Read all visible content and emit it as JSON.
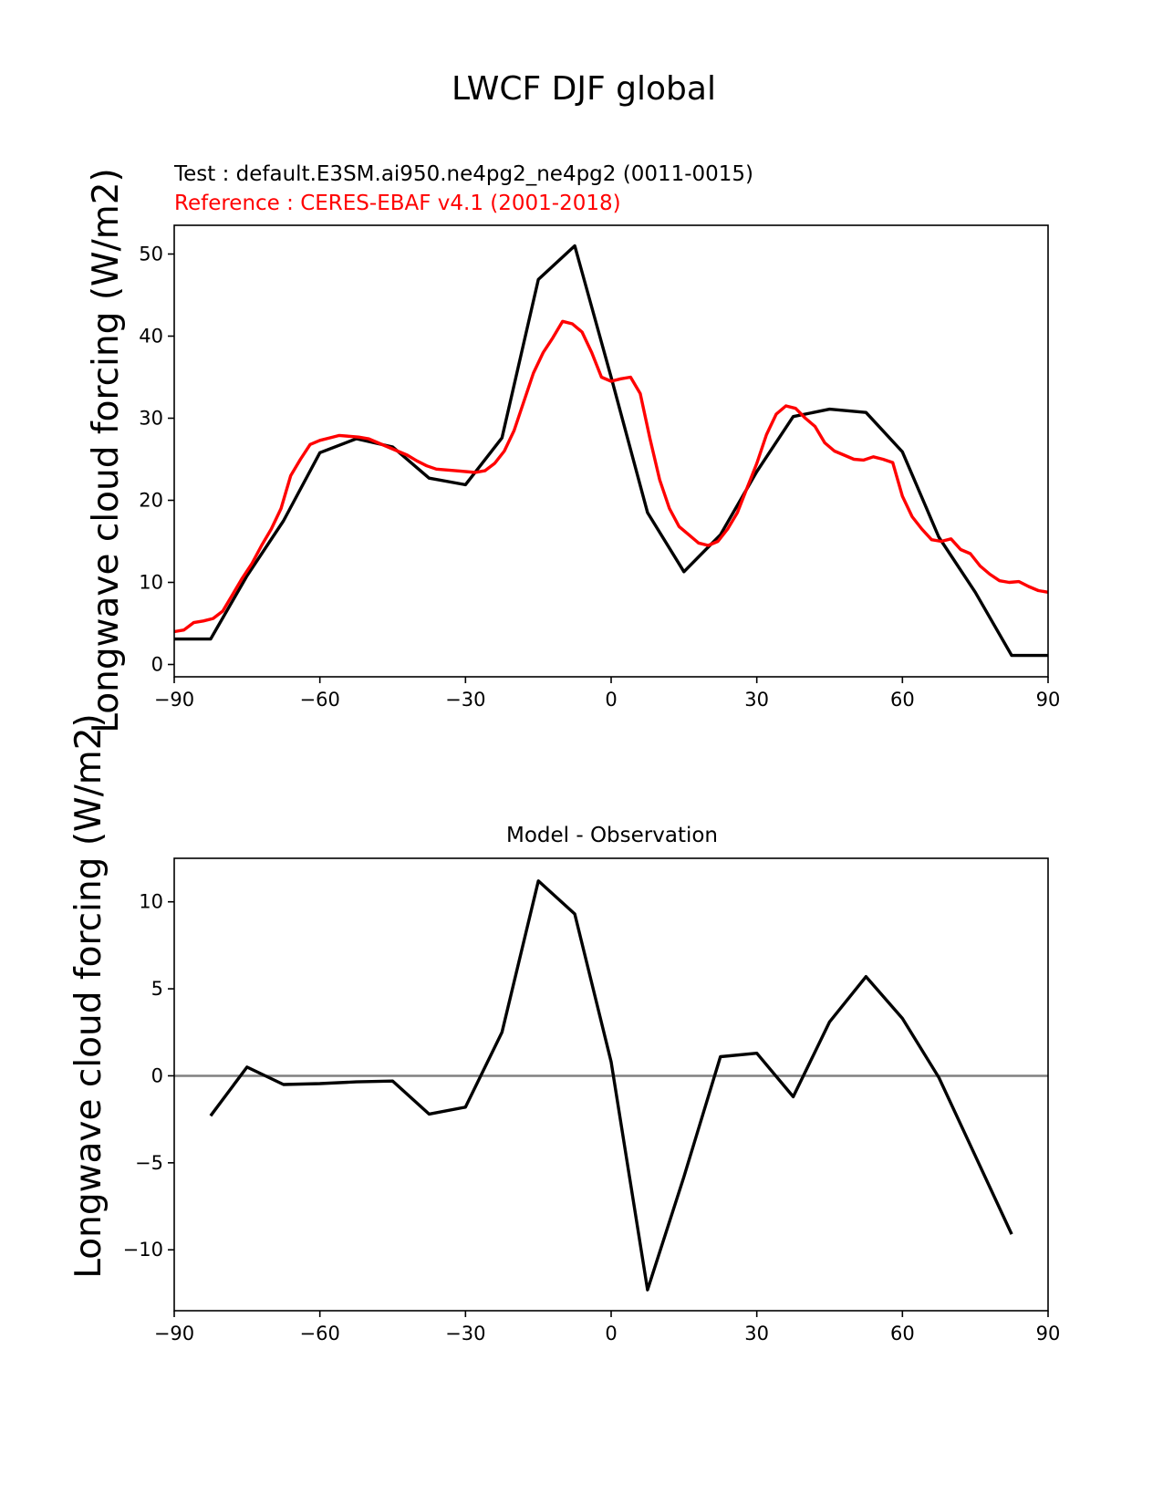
{
  "figure": {
    "title": "LWCF DJF global"
  },
  "colors": {
    "test": "#000000",
    "reference": "#ff0000",
    "zero_line": "#808080",
    "axes": "#000000"
  },
  "chart_data": [
    {
      "type": "line",
      "name": "top",
      "test_label": "Test : default.E3SM.ai950.ne4pg2_ne4pg2 (0011-0015)",
      "reference_label": "Reference : CERES-EBAF v4.1 (2001-2018)",
      "xlabel": "",
      "ylabel": "Longwave cloud forcing (W/m2)",
      "xlim": [
        -90,
        90
      ],
      "ylim": [
        -1.5,
        53.5
      ],
      "xticks": [
        -90,
        -60,
        -30,
        0,
        30,
        60,
        90
      ],
      "xtick_labels": [
        "−90",
        "−60",
        "−30",
        "0",
        "30",
        "60",
        "90"
      ],
      "yticks": [
        0,
        10,
        20,
        30,
        40,
        50
      ],
      "ytick_labels": [
        "0",
        "10",
        "20",
        "30",
        "40",
        "50"
      ],
      "series": [
        {
          "name": "Test",
          "color": "#000000",
          "x": [
            -90,
            -82.5,
            -75,
            -67.5,
            -60,
            -52.5,
            -45,
            -37.5,
            -30,
            -22.5,
            -15,
            -7.5,
            0,
            7.5,
            15,
            22.5,
            30,
            37.5,
            45,
            52.5,
            60,
            67.5,
            75,
            82.5,
            90
          ],
          "y": [
            3.1,
            3.1,
            10.8,
            17.5,
            25.8,
            27.5,
            26.5,
            22.7,
            21.9,
            27.6,
            46.9,
            51.0,
            35.0,
            18.5,
            11.3,
            15.8,
            23.5,
            30.2,
            31.1,
            30.7,
            25.9,
            15.5,
            8.8,
            1.1,
            1.1
          ]
        },
        {
          "name": "Reference",
          "color": "#ff0000",
          "x": [
            -90,
            -88,
            -86,
            -84,
            -82,
            -80,
            -78,
            -76,
            -74,
            -72,
            -70,
            -68,
            -66,
            -64,
            -62,
            -60,
            -58,
            -56,
            -54,
            -52,
            -50,
            -48,
            -46,
            -44,
            -42,
            -40,
            -38,
            -36,
            -34,
            -32,
            -30,
            -28,
            -26,
            -24,
            -22,
            -20,
            -18,
            -16,
            -14,
            -12,
            -10,
            -8,
            -6,
            -4,
            -2,
            0,
            2,
            4,
            6,
            8,
            10,
            12,
            14,
            16,
            18,
            20,
            22,
            24,
            26,
            28,
            30,
            32,
            34,
            36,
            38,
            40,
            42,
            44,
            46,
            48,
            50,
            52,
            54,
            56,
            58,
            60,
            62,
            64,
            66,
            68,
            70,
            72,
            74,
            76,
            78,
            80,
            82,
            84,
            86,
            88,
            90
          ],
          "y": [
            4.0,
            4.2,
            5.1,
            5.3,
            5.6,
            6.5,
            8.5,
            10.5,
            12.3,
            14.5,
            16.5,
            19.0,
            23.0,
            25.0,
            26.8,
            27.3,
            27.6,
            27.9,
            27.8,
            27.7,
            27.5,
            27.0,
            26.5,
            26.0,
            25.5,
            24.8,
            24.2,
            23.8,
            23.7,
            23.6,
            23.5,
            23.4,
            23.6,
            24.5,
            26.0,
            28.5,
            32.0,
            35.5,
            38.0,
            39.8,
            41.8,
            41.5,
            40.5,
            38.0,
            35.0,
            34.5,
            34.8,
            35.0,
            33.0,
            27.5,
            22.5,
            19.0,
            16.8,
            15.8,
            14.8,
            14.5,
            15.0,
            16.5,
            18.5,
            21.5,
            24.5,
            28.0,
            30.5,
            31.5,
            31.2,
            30.0,
            29.0,
            27.0,
            26.0,
            25.5,
            25.0,
            24.9,
            25.3,
            25.0,
            24.6,
            20.5,
            18.0,
            16.5,
            15.2,
            15.0,
            15.3,
            14.0,
            13.5,
            12.0,
            11.0,
            10.2,
            10.0,
            10.1,
            9.5,
            9.0,
            8.8
          ]
        }
      ]
    },
    {
      "type": "line",
      "name": "bottom",
      "title": "Model - Observation",
      "xlabel": "",
      "ylabel": "Longwave cloud forcing (W/m2)",
      "xlim": [
        -90,
        90
      ],
      "ylim": [
        -13.5,
        12.5
      ],
      "xticks": [
        -90,
        -60,
        -30,
        0,
        30,
        60,
        90
      ],
      "xtick_labels": [
        "−90",
        "−60",
        "−30",
        "0",
        "30",
        "60",
        "90"
      ],
      "yticks": [
        -10,
        -5,
        0,
        5,
        10
      ],
      "ytick_labels": [
        "−10",
        "−5",
        "0",
        "5",
        "10"
      ],
      "hline": 0,
      "series": [
        {
          "name": "Model - Observation",
          "color": "#000000",
          "x": [
            -82.5,
            -75,
            -67.5,
            -60,
            -52.5,
            -45,
            -37.5,
            -30,
            -22.5,
            -15,
            -7.5,
            0,
            7.5,
            15,
            22.5,
            30,
            37.5,
            45,
            52.5,
            60,
            67.5,
            75,
            82.5
          ],
          "y": [
            -2.3,
            0.5,
            -0.5,
            -0.45,
            -0.35,
            -0.3,
            -2.2,
            -1.8,
            2.5,
            11.2,
            9.3,
            0.8,
            -12.3,
            -5.8,
            1.1,
            1.3,
            -1.2,
            3.1,
            5.7,
            3.3,
            -0.1,
            -4.6,
            -9.1
          ]
        }
      ]
    }
  ]
}
